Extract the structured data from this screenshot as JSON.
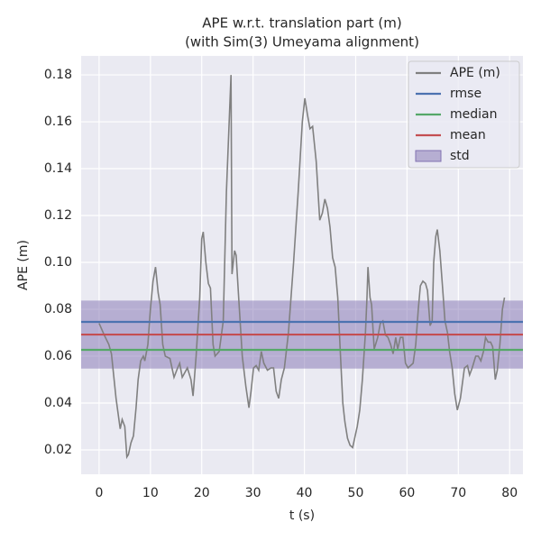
{
  "chart_data": {
    "type": "line",
    "title": "APE w.r.t. translation part (m)",
    "subtitle": "(with Sim(3) Umeyama alignment)",
    "x_label": "t (s)",
    "y_label": "APE (m)",
    "xlim": [
      -3.5,
      82.6
    ],
    "ylim": [
      0.0096,
      0.1881
    ],
    "xticks": [
      0,
      10,
      20,
      30,
      40,
      50,
      60,
      70,
      80
    ],
    "yticks": [
      0.02,
      0.04,
      0.06,
      0.08,
      {
        "value": 0.1,
        "label": "0.10"
      },
      0.12,
      0.14,
      0.16,
      0.18
    ],
    "grid": true,
    "legend": "upper right",
    "x": [
      0,
      1,
      1.9,
      2.4,
      3.3,
      4.1,
      4.5,
      5,
      5.4,
      5.7,
      6.2,
      6.7,
      7.2,
      7.6,
      8.1,
      8.6,
      8.9,
      9.5,
      10,
      10.5,
      11,
      11.5,
      11.9,
      12.4,
      12.9,
      13.8,
      14.6,
      15.3,
      15.7,
      16.2,
      16.7,
      17.2,
      17.9,
      18.3,
      18.9,
      19.6,
      20,
      20.3,
      20.8,
      21.3,
      21.7,
      22.2,
      22.6,
      23.4,
      24.2,
      24.8,
      25.7,
      25.9,
      26.4,
      26.7,
      27.2,
      27.9,
      28.6,
      29.2,
      29.6,
      30.1,
      30.6,
      31.1,
      31.6,
      32.1,
      32.8,
      33.5,
      34,
      34.5,
      35,
      35.5,
      36.1,
      36.9,
      37.9,
      38.8,
      39.6,
      40.1,
      40.6,
      41.1,
      41.6,
      42.3,
      43,
      43.5,
      44,
      44.5,
      45,
      45.5,
      46,
      46.5,
      47,
      47.5,
      47.9,
      48.4,
      48.9,
      49.4,
      49.9,
      50.3,
      50.8,
      51.3,
      51.9,
      52.2,
      52.4,
      52.8,
      53.1,
      53.6,
      54.3,
      54.8,
      55.3,
      55.8,
      56.3,
      56.8,
      57.3,
      57.8,
      58.2,
      58.7,
      59.2,
      59.7,
      60.2,
      60.7,
      61.2,
      61.7,
      62.2,
      62.6,
      63.1,
      63.6,
      64,
      64.5,
      64.9,
      65.2,
      65.6,
      65.9,
      66.4,
      66.9,
      67.4,
      67.9,
      68.3,
      68.8,
      69.3,
      69.8,
      70.4,
      71.2,
      71.8,
      72.2,
      72.7,
      73.4,
      73.9,
      74.4,
      74.9,
      75.3,
      75.8,
      76.3,
      76.7,
      77.2,
      77.6,
      78.1,
      78.6,
      79
    ],
    "series": [
      {
        "name": "APE (m)",
        "color": "#808080",
        "values": [
          0.074,
          0.069,
          0.065,
          0.061,
          0.042,
          0.029,
          0.033,
          0.03,
          0.017,
          0.018,
          0.023,
          0.026,
          0.038,
          0.05,
          0.058,
          0.06,
          0.058,
          0.065,
          0.08,
          0.092,
          0.098,
          0.087,
          0.082,
          0.065,
          0.06,
          0.059,
          0.051,
          0.055,
          0.057,
          0.051,
          0.053,
          0.055,
          0.05,
          0.043,
          0.06,
          0.085,
          0.11,
          0.113,
          0.1,
          0.091,
          0.089,
          0.065,
          0.06,
          0.062,
          0.075,
          0.13,
          0.18,
          0.095,
          0.105,
          0.103,
          0.085,
          0.06,
          0.047,
          0.038,
          0.045,
          0.055,
          0.056,
          0.054,
          0.062,
          0.057,
          0.054,
          0.055,
          0.055,
          0.045,
          0.042,
          0.05,
          0.055,
          0.07,
          0.1,
          0.13,
          0.16,
          0.17,
          0.163,
          0.157,
          0.158,
          0.143,
          0.118,
          0.121,
          0.127,
          0.123,
          0.115,
          0.102,
          0.098,
          0.085,
          0.062,
          0.04,
          0.032,
          0.025,
          0.022,
          0.021,
          0.026,
          0.03,
          0.037,
          0.05,
          0.07,
          0.085,
          0.098,
          0.085,
          0.082,
          0.063,
          0.068,
          0.074,
          0.075,
          0.069,
          0.068,
          0.065,
          0.061,
          0.068,
          0.063,
          0.068,
          0.068,
          0.057,
          0.055,
          0.056,
          0.057,
          0.065,
          0.08,
          0.09,
          0.092,
          0.091,
          0.088,
          0.073,
          0.075,
          0.1,
          0.111,
          0.114,
          0.105,
          0.09,
          0.075,
          0.07,
          0.062,
          0.055,
          0.044,
          0.037,
          0.042,
          0.055,
          0.056,
          0.052,
          0.055,
          0.06,
          0.06,
          0.058,
          0.062,
          0.068,
          0.066,
          0.066,
          0.064,
          0.05,
          0.054,
          0.065,
          0.08,
          0.085
        ]
      }
    ],
    "hlines": [
      {
        "name": "rmse",
        "color": "#4c72b0",
        "value": 0.0746
      },
      {
        "name": "median",
        "color": "#55a868",
        "value": 0.0627
      },
      {
        "name": "mean",
        "color": "#c44e52",
        "value": 0.0692
      }
    ],
    "band": {
      "name": "std",
      "color": "#8172b2",
      "value": 0.0145
    }
  }
}
